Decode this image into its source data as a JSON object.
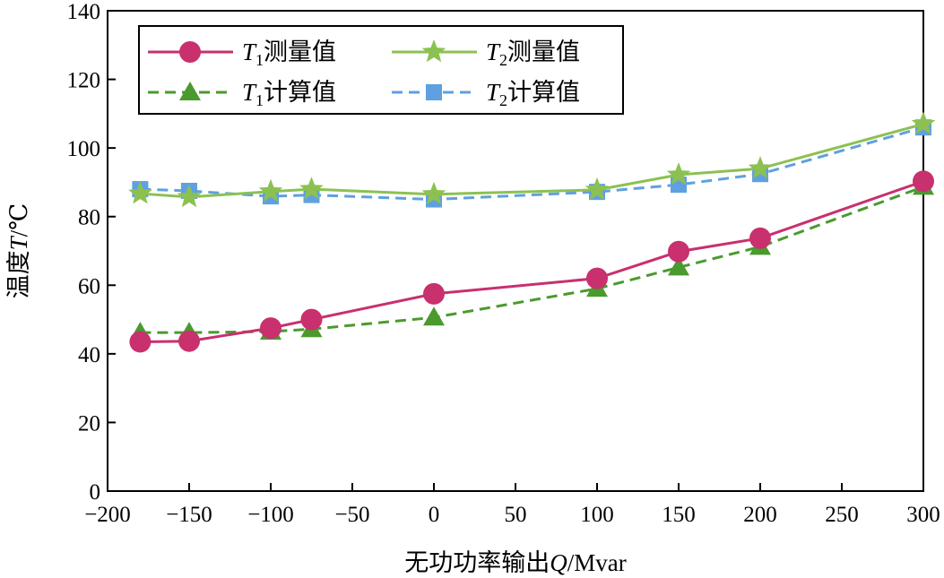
{
  "chart_data": {
    "type": "line",
    "title": "",
    "xlabel": {
      "prefix": "无功功率输出",
      "var": "Q",
      "suffix": "/Mvar"
    },
    "ylabel": {
      "prefix": "温度",
      "var": "T",
      "suffix": "/℃"
    },
    "xlim": [
      -200,
      300
    ],
    "ylim": [
      0,
      140
    ],
    "xticks": [
      -200,
      -150,
      -100,
      -50,
      0,
      50,
      100,
      150,
      200,
      250,
      300
    ],
    "xtick_labels": [
      "−200",
      "−150",
      "−100",
      "−50",
      "0",
      "50",
      "100",
      "150",
      "200",
      "250",
      "300"
    ],
    "yticks": [
      0,
      20,
      40,
      60,
      80,
      100,
      120,
      140
    ],
    "ytick_labels": [
      "0",
      "20",
      "40",
      "60",
      "80",
      "100",
      "120",
      "140"
    ],
    "grid": false,
    "legend_placement": "top-left",
    "x": [
      -180,
      -150,
      -100,
      -75,
      0,
      100,
      150,
      200,
      300
    ],
    "series": [
      {
        "name": "T1测量值",
        "var": "T",
        "sub": "1",
        "text": "测量值",
        "color": "#c8306e",
        "dash": false,
        "marker": "circle",
        "values": [
          43.5,
          43.7,
          47.5,
          50.0,
          57.5,
          62.0,
          69.8,
          73.7,
          90.3
        ]
      },
      {
        "name": "T2测量值",
        "var": "T",
        "sub": "2",
        "text": "测量值",
        "color": "#8cc152",
        "dash": false,
        "marker": "star",
        "values": [
          86.7,
          85.7,
          87.3,
          88.0,
          86.5,
          87.8,
          92.2,
          94.0,
          107.0
        ]
      },
      {
        "name": "T1计算值",
        "var": "T",
        "sub": "1",
        "text": "计算值",
        "color": "#4a9a2e",
        "dash": true,
        "marker": "triangle",
        "values": [
          46.2,
          46.2,
          46.5,
          47.2,
          50.6,
          59.0,
          65.2,
          71.2,
          88.7
        ]
      },
      {
        "name": "T2计算值",
        "var": "T",
        "sub": "2",
        "text": "计算值",
        "color": "#5fa0e0",
        "dash": true,
        "marker": "square",
        "values": [
          88.0,
          87.5,
          85.9,
          86.3,
          85.0,
          87.2,
          89.3,
          92.4,
          106.0
        ]
      }
    ]
  }
}
